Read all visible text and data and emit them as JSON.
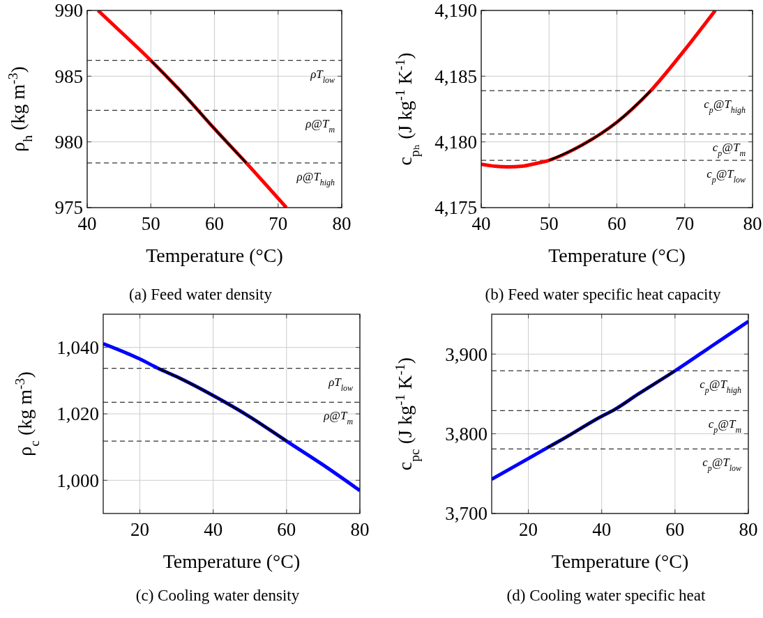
{
  "chart_data": [
    {
      "type": "line",
      "title": "(a) Feed water density",
      "xlabel": "Temperature (°C)",
      "ylabel": "ρ$_{h}$ (kg m$^{-3}$)",
      "xlim": [
        40,
        80
      ],
      "xticks": [
        40,
        50,
        60,
        70,
        80
      ],
      "ylim": [
        975,
        990
      ],
      "yticks": [
        975,
        980,
        985,
        990
      ],
      "grid": true,
      "series": [
        {
          "color": "#ff0000",
          "x": [
            41.7,
            45,
            50,
            55,
            60,
            65,
            71.3
          ],
          "values": [
            990,
            988.5,
            986.2,
            983.7,
            981.0,
            978.4,
            975
          ]
        },
        {
          "color": "#000000",
          "x": [
            50,
            55,
            60,
            65
          ],
          "values": [
            986.2,
            983.7,
            981.0,
            978.4
          ]
        }
      ],
      "ref_lines": [
        {
          "axis": "y",
          "value": 986.2,
          "label": "ρT$_{low}$",
          "color": "#333333",
          "line_style": "dashed"
        },
        {
          "axis": "y",
          "value": 982.4,
          "label": "ρ@T$_{m}$",
          "color": "#333333",
          "line_style": "dashed"
        },
        {
          "axis": "y",
          "value": 978.4,
          "label": "ρ@T$_{high}$",
          "color": "#333333",
          "line_style": "dashed"
        }
      ]
    },
    {
      "type": "line",
      "title": "(b) Feed water specific heat capacity",
      "xlabel": "Temperature (°C)",
      "ylabel": "c$_{pₕ}$ (J kg$^{-1}$ K$^{-1}$)",
      "xlim": [
        40,
        80
      ],
      "xticks": [
        40,
        50,
        60,
        70,
        80
      ],
      "ylim": [
        4175,
        4190
      ],
      "yticks": [
        {
          "value": 4175,
          "label": "4,175"
        },
        {
          "value": 4180,
          "label": "4,180"
        },
        {
          "value": 4185,
          "label": "4,185"
        },
        {
          "value": 4190,
          "label": "4,190"
        }
      ],
      "grid": true,
      "series": [
        {
          "color": "#ff0000",
          "x": [
            40,
            42,
            44,
            46,
            48,
            50,
            55,
            60,
            65,
            70,
            74.5
          ],
          "values": [
            4178.3,
            4178.15,
            4178.1,
            4178.15,
            4178.35,
            4178.6,
            4179.8,
            4181.5,
            4183.9,
            4187.0,
            4190
          ]
        },
        {
          "color": "#000000",
          "x": [
            50,
            55,
            60,
            65
          ],
          "values": [
            4178.6,
            4179.8,
            4181.5,
            4183.9
          ]
        }
      ],
      "ref_lines": [
        {
          "axis": "y",
          "value": 4183.9,
          "label": "c$_{p}$@T$_{high}$",
          "color": "#333333",
          "line_style": "dashed"
        },
        {
          "axis": "y",
          "value": 4180.6,
          "label": "c$_{p}$@T$_{m}$",
          "color": "#333333",
          "line_style": "dashed"
        },
        {
          "axis": "y",
          "value": 4178.6,
          "label": "c$_{p}$@T$_{low}$",
          "color": "#333333",
          "line_style": "dashed"
        }
      ]
    },
    {
      "type": "line",
      "title": "(c) Cooling water density",
      "xlabel": "Temperature (°C)",
      "ylabel": "ρ$_{c}$ (kg m$^{-3}$)",
      "xlim": [
        10,
        80
      ],
      "xticks": [
        20,
        40,
        60,
        80
      ],
      "ylim": [
        990,
        1050
      ],
      "yticks": [
        {
          "value": 1000,
          "label": "1,000"
        },
        {
          "value": 1020,
          "label": "1,020"
        },
        {
          "value": 1040,
          "label": "1,040"
        }
      ],
      "grid": true,
      "series": [
        {
          "color": "#0000ff",
          "x": [
            10,
            20,
            25,
            30,
            40,
            50,
            60,
            70,
            80
          ],
          "values": [
            1041.1,
            1036.5,
            1033.7,
            1031.2,
            1025.5,
            1019.1,
            1011.8,
            1004.6,
            996.9
          ]
        },
        {
          "color": "#000000",
          "x": [
            25,
            30,
            40,
            50,
            60
          ],
          "values": [
            1033.7,
            1031.2,
            1025.5,
            1019.1,
            1011.8
          ]
        }
      ],
      "ref_lines": [
        {
          "axis": "y",
          "value": 1033.7,
          "label": "ρT$_{low}$",
          "color": "#333333",
          "line_style": "dashed"
        },
        {
          "axis": "y",
          "value": 1023.5,
          "label": "ρ@T$_{m}$",
          "color": "#333333",
          "line_style": "dashed"
        },
        {
          "axis": "y",
          "value": 1011.8,
          "color": "#333333",
          "line_style": "dashed"
        }
      ]
    },
    {
      "type": "line",
      "title": "(d) Cooling water specific heat",
      "xlabel": "Temperature (°C)",
      "ylabel": "c$_{pc}$ (J kg$^{-1}$ K$^{-1}$)",
      "xlim": [
        10,
        80
      ],
      "xticks": [
        20,
        40,
        60,
        80
      ],
      "ylim": [
        3700,
        3950
      ],
      "yticks": [
        {
          "value": 3700,
          "label": "3,700"
        },
        {
          "value": 3800,
          "label": "3,800"
        },
        {
          "value": 3900,
          "label": "3,900"
        }
      ],
      "grid": true,
      "series": [
        {
          "color": "#0000ff",
          "x": [
            10,
            20,
            25,
            30,
            40,
            43,
            50,
            60,
            70,
            80
          ],
          "values": [
            3743,
            3769,
            3782,
            3795,
            3822,
            3829,
            3850,
            3879,
            3910,
            3941
          ]
        },
        {
          "color": "#000000",
          "x": [
            25,
            30,
            40,
            43,
            50,
            60
          ],
          "values": [
            3782,
            3795,
            3822,
            3829,
            3850,
            3879
          ]
        }
      ],
      "ref_lines": [
        {
          "axis": "y",
          "value": 3879,
          "label": "c$_{p}$@T$_{high}$",
          "color": "#333333",
          "line_style": "dashed"
        },
        {
          "axis": "y",
          "value": 3829,
          "label": "c$_{p}$@T$_{m}$",
          "color": "#333333",
          "line_style": "dashed"
        },
        {
          "axis": "y",
          "value": 3781,
          "label": "c$_{p}$@T$_{low}$",
          "color": "#333333",
          "line_style": "dashed"
        }
      ]
    }
  ]
}
